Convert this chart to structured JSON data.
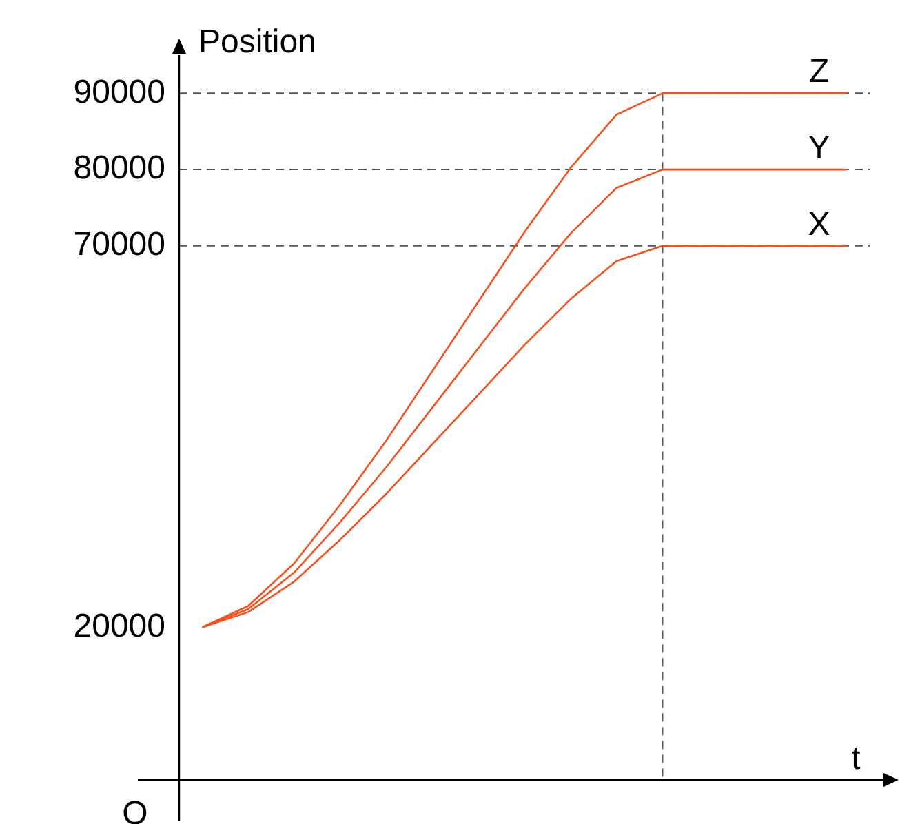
{
  "chart_data": {
    "type": "line",
    "ylabel": "Position",
    "annotations": [
      "O",
      "t"
    ],
    "categories": [
      null,
      null,
      null,
      null,
      null,
      null,
      null,
      null,
      null,
      null,
      null,
      null,
      null,
      null,
      null
    ],
    "series": [
      {
        "name": "Z",
        "color": "#f4511e",
        "values": [
          20000,
          22800,
          28400,
          36100,
          44500,
          53600,
          62700,
          71800,
          80200,
          87200,
          90000,
          90000,
          90000,
          90000,
          90000
        ]
      },
      {
        "name": "Y",
        "color": "#f4511e",
        "values": [
          20000,
          22400,
          27200,
          33800,
          41000,
          48800,
          56600,
          64400,
          71600,
          77600,
          80000,
          80000,
          80000,
          80000,
          80000
        ]
      },
      {
        "name": "X",
        "color": "#f4511e",
        "values": [
          20000,
          22000,
          26000,
          31500,
          37500,
          44000,
          50500,
          57000,
          63000,
          68000,
          70000,
          70000,
          70000,
          70000,
          70000
        ]
      }
    ],
    "ylim": [
      0,
      95000
    ],
    "yticks": [
      20000,
      70000,
      80000,
      90000
    ],
    "tick_labels": "y",
    "ref_lines": [
      {
        "axis": "y",
        "value": 70000,
        "color": "#555555",
        "line_style": "dashed"
      },
      {
        "axis": "y",
        "value": 80000,
        "color": "#555555",
        "line_style": "dashed"
      },
      {
        "axis": "y",
        "value": 90000,
        "color": "#555555",
        "line_style": "dashed"
      }
    ],
    "grid": false,
    "legend": false,
    "marker": "none",
    "line_style": "solid"
  }
}
